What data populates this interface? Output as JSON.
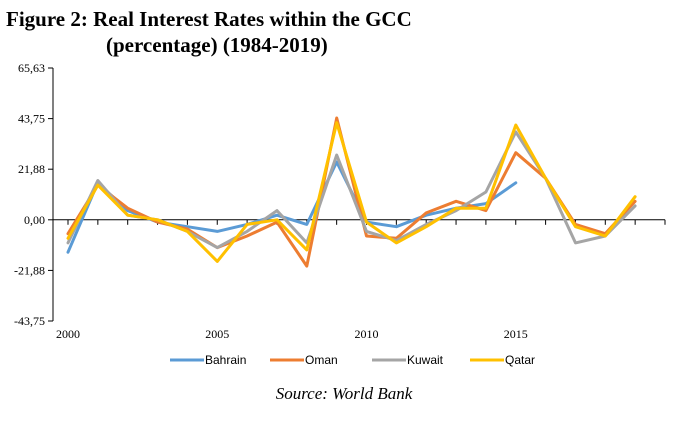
{
  "title_line1": "Figure 2: Real Interest Rates within the GCC",
  "title_line2": "(percentage) (1984-2019)",
  "source": "Source:  World Bank",
  "chart_data": {
    "type": "line",
    "title": "Figure 2: Real Interest Rates within the GCC (percentage) (1984-2019)",
    "xlabel": "",
    "ylabel": "",
    "x": [
      2000,
      2001,
      2002,
      2003,
      2004,
      2005,
      2006,
      2007,
      2008,
      2009,
      2010,
      2011,
      2012,
      2013,
      2014,
      2015,
      2016,
      2017,
      2018,
      2019
    ],
    "xlim": [
      2000,
      2020
    ],
    "x_ticks": [
      2000,
      2005,
      2010,
      2015
    ],
    "x_tick_labels": [
      "2000",
      "2005",
      "2010",
      "2015"
    ],
    "ylim": [
      -43.75,
      65.63
    ],
    "y_ticks": [
      65.63,
      43.75,
      21.88,
      0,
      -21.88,
      -43.75
    ],
    "y_tick_labels": [
      "65,63",
      "43,75",
      "21,88",
      "0,00",
      "-21,88",
      "-43,75"
    ],
    "grid": false,
    "legend_position": "bottom",
    "series": [
      {
        "name": "Bahrain",
        "color": "#5b9bd5",
        "values": [
          -14,
          16,
          4,
          -1,
          -3,
          -5,
          -2,
          2,
          -2,
          25,
          -1,
          -3,
          2,
          5,
          7,
          16,
          null,
          null,
          null,
          null
        ]
      },
      {
        "name": "Oman",
        "color": "#ed7d31",
        "values": [
          -6,
          15,
          5,
          -1,
          -4,
          -12,
          -7,
          -1,
          -20,
          44,
          -7,
          -8,
          3,
          8,
          4,
          29,
          18,
          -2,
          -6,
          8
        ]
      },
      {
        "name": "Kuwait",
        "color": "#a5a5a5",
        "values": [
          -10,
          17,
          2,
          0,
          -5,
          -12,
          -5,
          4,
          -10,
          28,
          -5,
          -9,
          -2,
          4,
          12,
          38,
          18,
          -10,
          -7,
          6
        ]
      },
      {
        "name": "Qatar",
        "color": "#ffc000",
        "values": [
          -8,
          15,
          2,
          0,
          -5,
          -18,
          -2,
          0,
          -13,
          42,
          -1,
          -10,
          -3,
          5,
          5,
          41,
          18,
          -3,
          -7,
          10
        ]
      }
    ]
  }
}
